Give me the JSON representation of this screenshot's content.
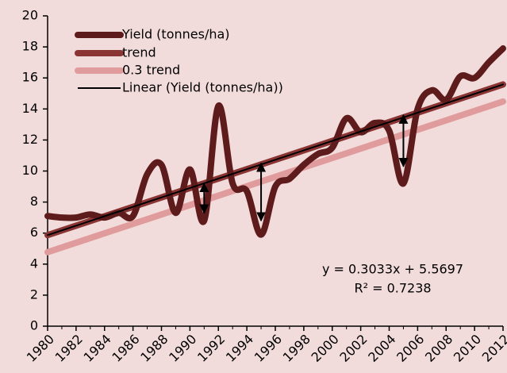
{
  "chart_data": {
    "type": "line",
    "x": [
      1980,
      1981,
      1982,
      1983,
      1984,
      1985,
      1986,
      1987,
      1988,
      1989,
      1990,
      1991,
      1992,
      1993,
      1994,
      1995,
      1996,
      1997,
      1998,
      1999,
      2000,
      2001,
      2002,
      2003,
      2004,
      2005,
      2006,
      2007,
      2008,
      2009,
      2010,
      2011,
      2012
    ],
    "series": [
      {
        "name": "Yield (tonnes/ha)",
        "color": "#5e1b1b",
        "width": 8,
        "smooth": true,
        "values": [
          7.1,
          7.0,
          7.0,
          7.2,
          7.0,
          7.3,
          7.1,
          9.8,
          10.4,
          7.3,
          10.1,
          6.8,
          14.2,
          9.2,
          8.7,
          5.9,
          9.0,
          9.5,
          10.4,
          11.1,
          11.5,
          13.4,
          12.5,
          13.1,
          12.6,
          9.2,
          14.0,
          15.2,
          14.6,
          16.1,
          16.0,
          17.0,
          17.9
        ]
      },
      {
        "name": "trend",
        "color": "#8a3434",
        "width": 8,
        "x": [
          1980,
          2012
        ],
        "values": [
          5.87,
          15.58
        ]
      },
      {
        "name": "0.3 trend",
        "color": "#e09c9c",
        "width": 8,
        "x": [
          1980,
          2012
        ],
        "values": [
          4.77,
          14.48
        ]
      },
      {
        "name": "Linear (Yield (tonnes/ha))",
        "color": "#000000",
        "width": 2,
        "x": [
          1980,
          2012
        ],
        "values": [
          5.87,
          15.58
        ]
      }
    ],
    "arrows": [
      {
        "x": 1991,
        "values": [
          9.2,
          7.3
        ]
      },
      {
        "x": 1995,
        "values": [
          10.5,
          6.8
        ]
      },
      {
        "x": 2005,
        "values": [
          13.6,
          10.3
        ]
      }
    ],
    "annotations": [
      "y = 0.3033x + 5.5697",
      "R² = 0.7238"
    ],
    "xlim": [
      1980,
      2012
    ],
    "xticks": [
      1980,
      1982,
      1984,
      1986,
      1988,
      1990,
      1992,
      1994,
      1996,
      1998,
      2000,
      2002,
      2004,
      2006,
      2008,
      2010,
      2012
    ],
    "ylim": [
      0,
      20
    ],
    "yticks": [
      0,
      2,
      4,
      6,
      8,
      10,
      12,
      14,
      16,
      18,
      20
    ]
  }
}
